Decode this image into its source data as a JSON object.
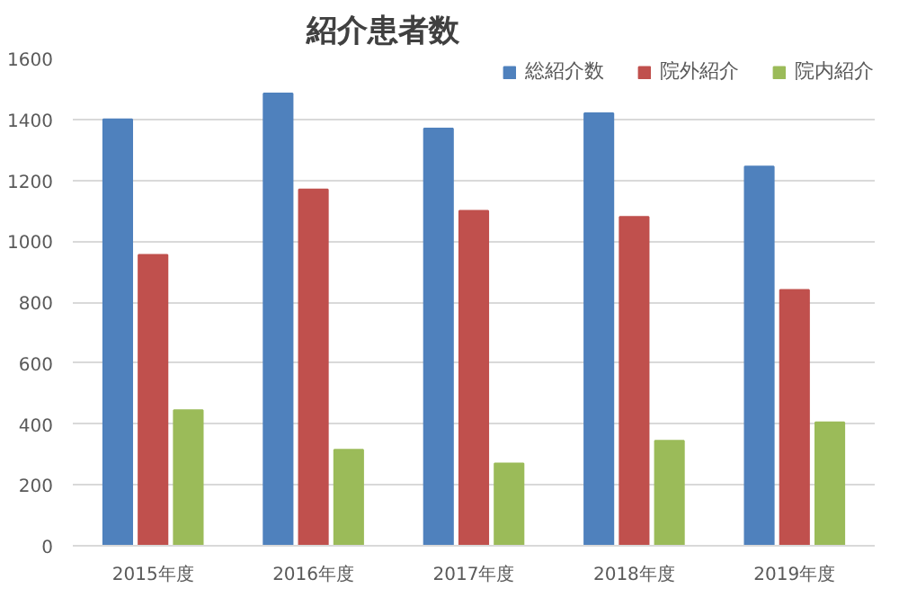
{
  "chart_data": {
    "type": "bar",
    "title": "紹介患者数",
    "categories": [
      "2015年度",
      "2016年度",
      "2017年度",
      "2018年度",
      "2019年度"
    ],
    "series": [
      {
        "name": "総紹介数",
        "color": "#4f81bd",
        "values": [
          1400,
          1485,
          1370,
          1420,
          1245
        ]
      },
      {
        "name": "院外紹介",
        "color": "#c0504d",
        "values": [
          955,
          1170,
          1100,
          1080,
          840
        ]
      },
      {
        "name": "院内紹介",
        "color": "#9bbb59",
        "values": [
          445,
          315,
          270,
          345,
          405
        ]
      }
    ],
    "ylim": [
      0,
      1600
    ],
    "yticks": [
      0,
      200,
      400,
      600,
      800,
      1000,
      1200,
      1400,
      1600
    ],
    "grid": "y",
    "legend": "top right"
  }
}
